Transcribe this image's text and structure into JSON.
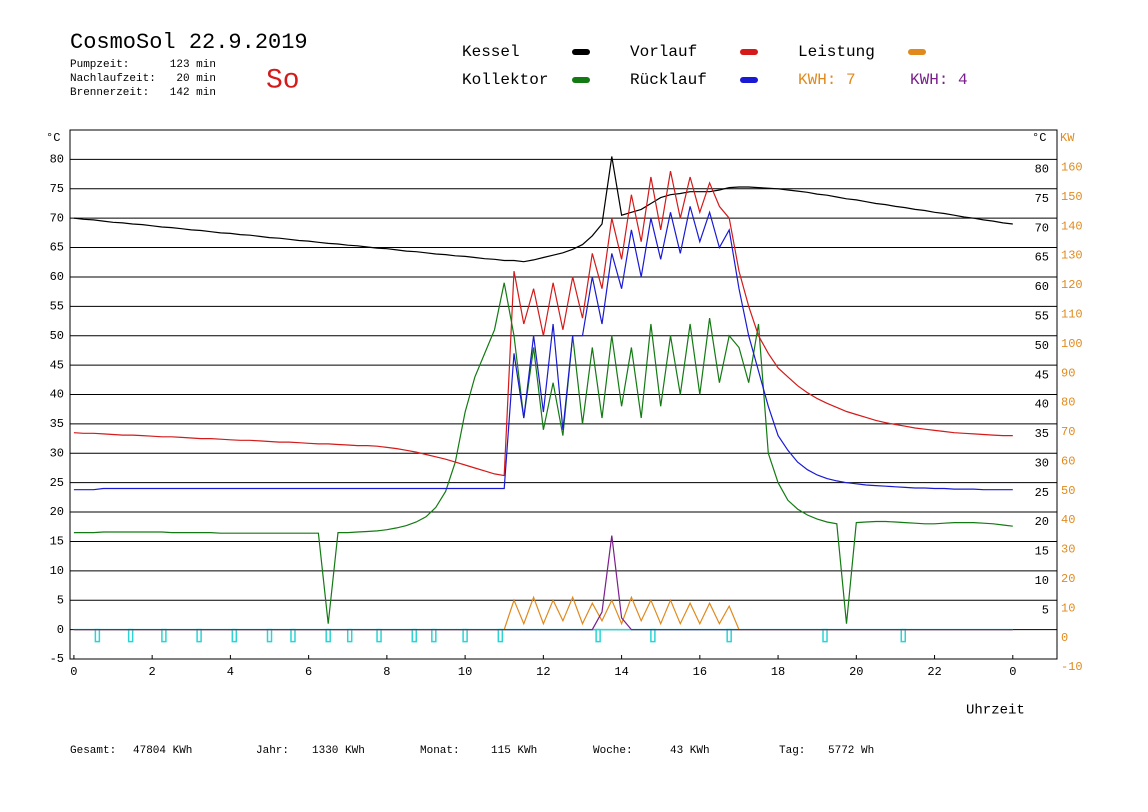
{
  "chart_data": {
    "type": "line",
    "title": "CosmoSol 22.9.2019",
    "day": "So",
    "stats": [
      {
        "label": "Pumpzeit:",
        "value": "123 min"
      },
      {
        "label": "Nachlaufzeit:",
        "value": "20 min"
      },
      {
        "label": "Brennerzeit:",
        "value": "142 min"
      }
    ],
    "kwh_labels": [
      {
        "text": "KWH: 7",
        "color": "#e08a1e"
      },
      {
        "text": "KWH: 4",
        "color": "#7a1f8c"
      }
    ],
    "y_unit": "°C",
    "y2_unit": "KW",
    "x_label": "Uhrzeit",
    "xlim": [
      -0.1,
      25.13
    ],
    "xticks": [
      0,
      2,
      4,
      6,
      8,
      10,
      12,
      14,
      16,
      18,
      20,
      22,
      {
        "value": 24,
        "label": "0"
      }
    ],
    "ylim": [
      -5,
      85
    ],
    "yticks": [
      -5,
      0,
      5,
      10,
      15,
      20,
      25,
      30,
      35,
      40,
      45,
      50,
      55,
      60,
      65,
      70,
      75,
      80
    ],
    "y_right_ticks": [
      5,
      10,
      15,
      20,
      25,
      30,
      35,
      40,
      45,
      50,
      55,
      60,
      65,
      70,
      75,
      80
    ],
    "y2lim": [
      -10,
      170
    ],
    "y2ticks": [
      -10,
      0,
      10,
      20,
      30,
      40,
      50,
      60,
      70,
      80,
      90,
      100,
      110,
      120,
      130,
      140,
      150,
      160
    ],
    "grid": true,
    "x": [
      0,
      0.25,
      0.5,
      0.75,
      1,
      1.25,
      1.5,
      1.75,
      2,
      2.25,
      2.5,
      2.75,
      3,
      3.25,
      3.5,
      3.75,
      4,
      4.25,
      4.5,
      4.75,
      5,
      5.25,
      5.5,
      5.75,
      6,
      6.25,
      6.5,
      6.75,
      7,
      7.25,
      7.5,
      7.75,
      8,
      8.25,
      8.5,
      8.75,
      9,
      9.25,
      9.5,
      9.75,
      10,
      10.25,
      10.5,
      10.75,
      11,
      11.25,
      11.5,
      11.75,
      12,
      12.25,
      12.5,
      12.75,
      13,
      13.25,
      13.5,
      13.75,
      14,
      14.25,
      14.5,
      14.75,
      15,
      15.25,
      15.5,
      15.75,
      16,
      16.25,
      16.5,
      16.75,
      17,
      17.25,
      17.5,
      17.75,
      18,
      18.25,
      18.5,
      18.75,
      19,
      19.25,
      19.5,
      19.75,
      20,
      20.25,
      20.5,
      20.75,
      21,
      21.25,
      21.5,
      21.75,
      22,
      22.25,
      22.5,
      22.75,
      23,
      23.25,
      23.5,
      23.75,
      24
    ],
    "series": [
      {
        "name": "Kessel",
        "color": "#000000",
        "values": [
          70.0,
          69.8,
          69.7,
          69.5,
          69.3,
          69.2,
          69.0,
          68.9,
          68.7,
          68.5,
          68.4,
          68.2,
          68.0,
          67.9,
          67.7,
          67.5,
          67.4,
          67.2,
          67.1,
          66.9,
          66.7,
          66.6,
          66.4,
          66.2,
          66.1,
          65.9,
          65.7,
          65.6,
          65.4,
          65.3,
          65.1,
          64.9,
          64.8,
          64.6,
          64.4,
          64.3,
          64.1,
          63.9,
          63.8,
          63.6,
          63.5,
          63.3,
          63.1,
          63.0,
          62.8,
          62.8,
          62.6,
          62.9,
          63.3,
          63.7,
          64.1,
          64.7,
          65.5,
          67,
          69,
          80.5,
          70.5,
          71,
          71.5,
          72.5,
          73.5,
          74,
          74.2,
          74.5,
          74.5,
          74.5,
          74.8,
          75.2,
          75.3,
          75.3,
          75.2,
          75.1,
          75,
          74.8,
          74.6,
          74.4,
          74.1,
          73.9,
          73.6,
          73.3,
          73.1,
          72.8,
          72.5,
          72.3,
          72,
          71.8,
          71.5,
          71.3,
          71,
          70.8,
          70.5,
          70.2,
          70,
          69.7,
          69.5,
          69.2,
          69.0
        ]
      },
      {
        "name": "Kollektor",
        "color": "#137a13",
        "values": [
          16.5,
          16.5,
          16.5,
          16.6,
          16.6,
          16.6,
          16.6,
          16.6,
          16.6,
          16.6,
          16.5,
          16.5,
          16.5,
          16.5,
          16.5,
          16.4,
          16.4,
          16.4,
          16.4,
          16.4,
          16.4,
          16.4,
          16.4,
          16.4,
          16.4,
          16.4,
          1,
          16.5,
          16.5,
          16.6,
          16.7,
          16.8,
          17,
          17.3,
          17.7,
          18.3,
          19.2,
          20.8,
          23.5,
          28.5,
          37,
          43,
          47,
          51,
          59,
          50,
          36,
          48,
          34,
          42,
          33,
          50,
          35,
          48,
          36,
          50,
          38,
          48,
          36,
          52,
          38,
          50,
          40,
          52,
          40,
          53,
          42,
          50,
          48,
          42,
          52,
          30,
          25,
          22,
          20.5,
          19.5,
          18.8,
          18.3,
          18,
          1,
          18.2,
          18.3,
          18.4,
          18.4,
          18.3,
          18.2,
          18.1,
          18,
          18,
          18.1,
          18.2,
          18.2,
          18.2,
          18.1,
          18,
          17.8,
          17.6
        ]
      },
      {
        "name": "Vorlauf",
        "color": "#d41a1a",
        "values": [
          33.5,
          33.4,
          33.4,
          33.3,
          33.2,
          33.1,
          33.1,
          33.0,
          32.9,
          32.8,
          32.8,
          32.7,
          32.6,
          32.5,
          32.5,
          32.4,
          32.3,
          32.2,
          32.2,
          32.1,
          32.0,
          31.9,
          31.9,
          31.8,
          31.7,
          31.6,
          31.6,
          31.5,
          31.4,
          31.3,
          31.3,
          31.2,
          31.0,
          30.8,
          30.5,
          30.2,
          29.8,
          29.4,
          29,
          28.5,
          28,
          27.5,
          27,
          26.5,
          26.2,
          61,
          52,
          58,
          50,
          59,
          51,
          60,
          53,
          64,
          58,
          70,
          63,
          74,
          66,
          77,
          68,
          78,
          70,
          77,
          71,
          76,
          72,
          70,
          61,
          55,
          50,
          47,
          44.5,
          43,
          41.5,
          40.3,
          39.3,
          38.5,
          37.8,
          37.1,
          36.6,
          36.1,
          35.6,
          35.2,
          34.9,
          34.6,
          34.3,
          34.1,
          33.9,
          33.7,
          33.5,
          33.4,
          33.3,
          33.2,
          33.1,
          33.0,
          33.0
        ]
      },
      {
        "name": "Rücklauf",
        "color": "#1a1ad4",
        "values": [
          23.8,
          23.8,
          23.8,
          24.0,
          24.0,
          24.0,
          24.0,
          24.0,
          24.0,
          24.0,
          24.0,
          24.0,
          24.0,
          24.0,
          24.0,
          24.0,
          24.0,
          24.0,
          24.0,
          24.0,
          24.0,
          24.0,
          24.0,
          24.0,
          24.0,
          24.0,
          24.0,
          24.0,
          24.0,
          24.0,
          24.0,
          24.0,
          24.0,
          24.0,
          24.0,
          24.0,
          24.0,
          24.0,
          24.0,
          24.0,
          24.0,
          24.0,
          24.0,
          24.0,
          24.0,
          47,
          36,
          50,
          37,
          52,
          34,
          50,
          50,
          60,
          52,
          64,
          58,
          68,
          60,
          70,
          63,
          71,
          64,
          72,
          66,
          71,
          65,
          68,
          58,
          50,
          44,
          38,
          33,
          30.5,
          28.5,
          27.2,
          26.3,
          25.7,
          25.3,
          25,
          24.8,
          24.6,
          24.5,
          24.4,
          24.3,
          24.2,
          24.1,
          24.1,
          24,
          24,
          23.9,
          23.9,
          23.9,
          23.8,
          23.8,
          23.8,
          23.8
        ]
      },
      {
        "name": "Leistung",
        "color": "#e08a1e",
        "axis": "y2",
        "values": [
          0,
          0,
          0,
          0,
          0,
          0,
          0,
          0,
          0,
          0,
          0,
          0,
          0,
          0,
          0,
          0,
          0,
          0,
          0,
          0,
          0,
          0,
          0,
          0,
          0,
          0,
          0,
          0,
          0,
          0,
          0,
          0,
          0,
          0,
          0,
          0,
          0,
          0,
          0,
          0,
          0,
          0,
          0,
          0,
          0,
          10,
          2,
          11,
          2,
          10,
          3,
          11,
          2,
          9,
          3,
          10,
          2,
          11,
          3,
          10,
          2,
          10,
          2,
          9,
          2,
          9,
          2,
          8,
          0,
          0,
          0,
          0,
          0,
          0,
          0,
          0,
          0,
          0,
          0,
          0,
          0,
          0,
          0,
          0,
          0,
          0,
          0,
          0,
          0,
          0,
          0,
          0,
          0,
          0,
          0,
          0,
          0
        ]
      },
      {
        "color": "#7a1f8c",
        "axis": "y2",
        "values": [
          0,
          0,
          0,
          0,
          0,
          0,
          0,
          0,
          0,
          0,
          0,
          0,
          0,
          0,
          0,
          0,
          0,
          0,
          0,
          0,
          0,
          0,
          0,
          0,
          0,
          0,
          0,
          0,
          0,
          0,
          0,
          0,
          0,
          0,
          0,
          0,
          0,
          0,
          0,
          0,
          0,
          0,
          0,
          0,
          0,
          0,
          0,
          0,
          0,
          0,
          0,
          0,
          0,
          0,
          6,
          32,
          4,
          0,
          0,
          0,
          0,
          0,
          0,
          0,
          0,
          0,
          0,
          0,
          0,
          0,
          0,
          0,
          0,
          0,
          0,
          0,
          0,
          0,
          0,
          0,
          0,
          0,
          0,
          0,
          0,
          0,
          0,
          0,
          0,
          0,
          0,
          0,
          0,
          0,
          0,
          0,
          0
        ]
      }
    ],
    "pump": {
      "color": "#2ad4d4",
      "level": 0,
      "starts": [
        0.6,
        1.45,
        2.3,
        3.2,
        4.1,
        5.0,
        5.6,
        6.5,
        7.05,
        7.8,
        8.7,
        9.2,
        10.0,
        10.9,
        13.4,
        14.8,
        16.75,
        19.2,
        21.2
      ]
    },
    "totals": [
      {
        "label": "Gesamt:",
        "value": "47804 KWh"
      },
      {
        "label": "Jahr:",
        "value": "1330 KWh"
      },
      {
        "label": "Monat:",
        "value": "115 KWh"
      },
      {
        "label": "Woche:",
        "value": "43 KWh"
      },
      {
        "label": "Tag:",
        "value": "5772 Wh"
      }
    ]
  }
}
